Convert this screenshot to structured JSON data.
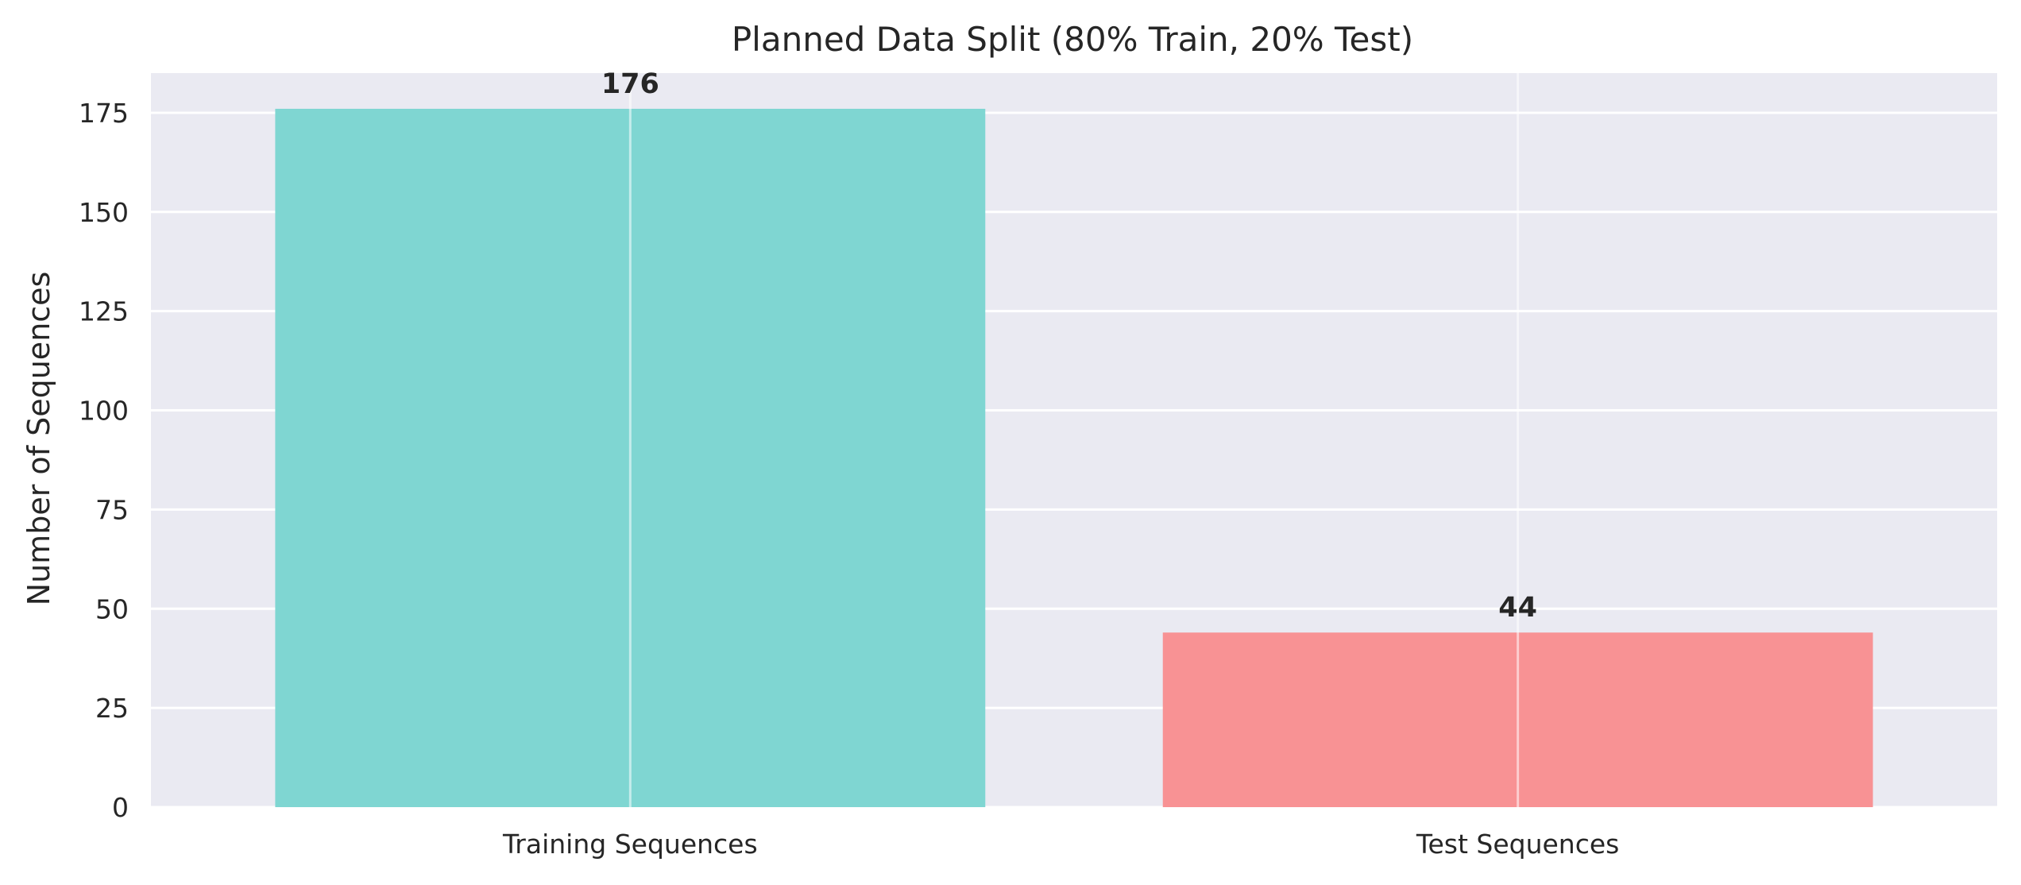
{
  "chart_data": {
    "type": "bar",
    "title": "Planned Data Split (80% Train, 20% Test)",
    "xlabel": "",
    "ylabel": "Number of Sequences",
    "categories": [
      "Training Sequences",
      "Test Sequences"
    ],
    "values": [
      176,
      44
    ],
    "data_labels": [
      "176",
      "44"
    ],
    "bar_colors": [
      "#7fd6d2",
      "#f89294"
    ],
    "ylim": [
      0,
      185
    ],
    "yticks": [
      0,
      25,
      50,
      75,
      100,
      125,
      150,
      175
    ],
    "grid": true,
    "background_color": "#eaeaf2",
    "grid_color": "#ffffff"
  }
}
